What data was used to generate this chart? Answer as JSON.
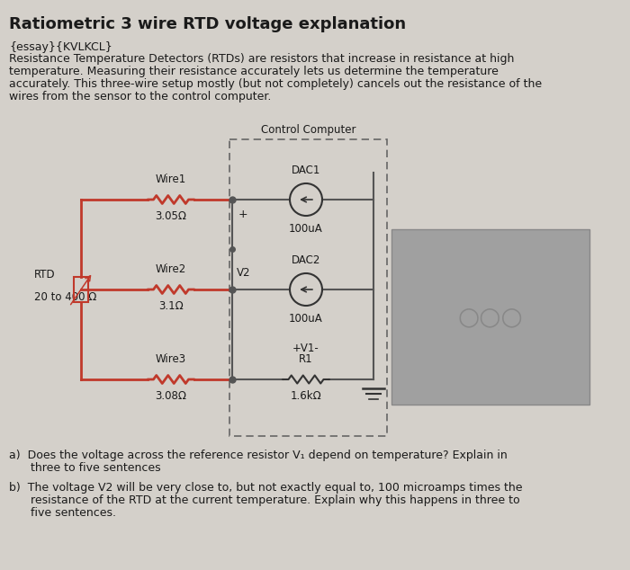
{
  "title": "Ratiometric 3 wire RTD voltage explanation",
  "bg_color": "#d4d0ca",
  "text_color": "#1a1a1a",
  "intro_tag": "{essay}{KVLKCL}",
  "intro_lines": [
    "Resistance Temperature Detectors (RTDs) are resistors that increase in resistance at high",
    "temperature. Measuring their resistance accurately lets us determine the temperature",
    "accurately. This three-wire setup mostly (but not completely) cancels out the resistance of the",
    "wires from the sensor to the control computer."
  ],
  "circuit": {
    "wire_color": "#c0392b",
    "dark_color": "#333333",
    "bus_color": "#555555"
  },
  "photo_color": "#a0a0a0",
  "photo_border": "#888888",
  "question_a_line1": "a)  Does the voltage across the reference resistor V₁ depend on temperature? Explain in",
  "question_a_line2": "      three to five sentences",
  "question_b_line1": "b)  The voltage V2 will be very close to, but not exactly equal to, 100 microamps times the",
  "question_b_line2": "      resistance of the RTD at the current temperature. Explain why this happens in three to",
  "question_b_line3": "      five sentences."
}
